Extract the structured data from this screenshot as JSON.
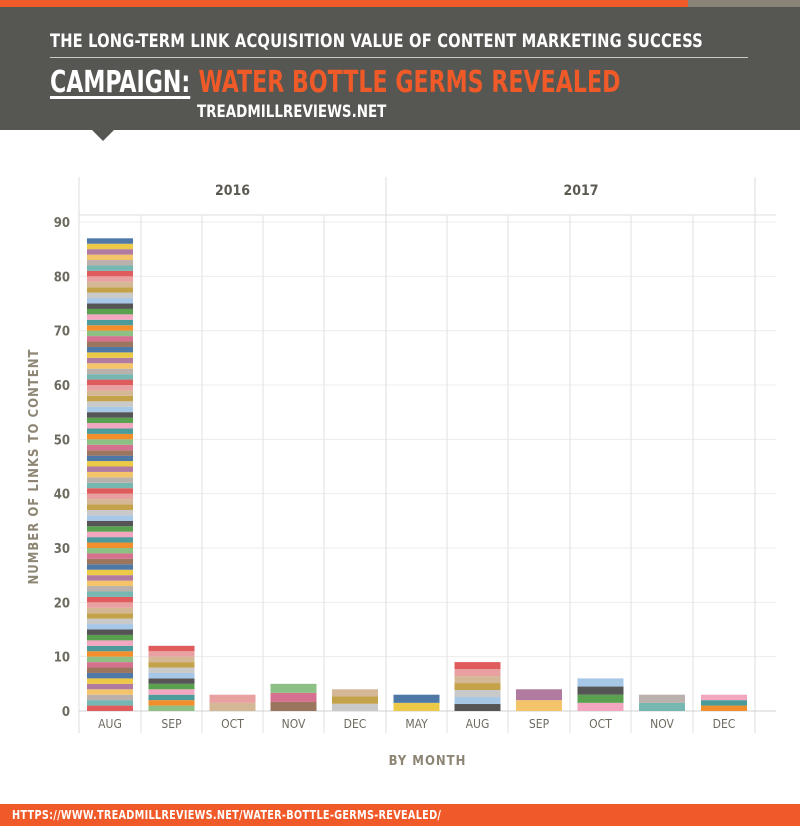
{
  "header": {
    "kicker": "THE LONG-TERM LINK ACQUISITION VALUE OF CONTENT MARKETING SUCCESS",
    "campaign_label": "CAMPAIGN",
    "campaign_colon": ":",
    "campaign_name": "WATER BOTTLE GERMS REVEALED",
    "site": "TREADMILLREVIEWS.NET"
  },
  "colors": {
    "accent": "#f05a28",
    "header_bg": "#565753",
    "axis_text": "#6d6a5f",
    "palette": [
      "#e05c5c",
      "#f4c46a",
      "#4e79a7",
      "#8cc084",
      "#f2a6c0",
      "#a7c7e7",
      "#d4b896",
      "#76b7b2",
      "#b07aa1",
      "#9c755f",
      "#f28e2b",
      "#59a14f",
      "#c9c9c9",
      "#e8a0a0",
      "#bab0ac",
      "#edc948",
      "#d6708f",
      "#4b9b9b",
      "#555555",
      "#c4a24a"
    ]
  },
  "footer": {
    "url": "HTTPS://WWW.TREADMILLREVIEWS.NET/WATER-BOTTLE-GERMS-REVEALED/"
  },
  "chart_data": {
    "type": "bar",
    "stacked": true,
    "years": [
      {
        "label": "2016",
        "months": [
          "AUG",
          "SEP",
          "OCT",
          "NOV",
          "DEC"
        ]
      },
      {
        "label": "2017",
        "months": [
          "MAY",
          "AUG",
          "SEP",
          "OCT",
          "NOV",
          "DEC"
        ]
      }
    ],
    "categories": [
      "AUG",
      "SEP",
      "OCT",
      "NOV",
      "DEC",
      "MAY",
      "AUG",
      "SEP",
      "OCT",
      "NOV",
      "DEC"
    ],
    "values": [
      87,
      12,
      3,
      5,
      4,
      3,
      9,
      4,
      6,
      3,
      3
    ],
    "stack_counts": [
      87,
      12,
      2,
      3,
      3,
      2,
      7,
      2,
      4,
      2,
      3
    ],
    "ylabel": "NUMBER OF LINKS TO CONTENT",
    "xlabel": "BY MONTH",
    "ylim": [
      0,
      90
    ],
    "yticks": [
      0,
      10,
      20,
      30,
      40,
      50,
      60,
      70,
      80,
      90
    ],
    "grid": true
  }
}
